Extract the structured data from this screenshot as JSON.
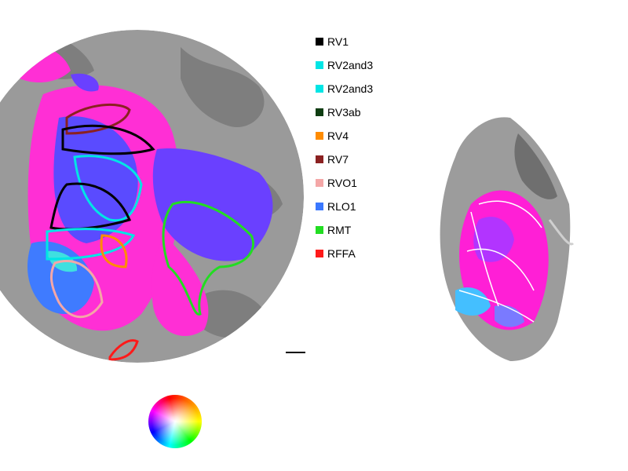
{
  "legend": {
    "items": [
      {
        "label": "RV1",
        "color": "#000000"
      },
      {
        "label": "RV2and3",
        "color": "#00e5e5"
      },
      {
        "label": "RV2and3",
        "color": "#00e5e5"
      },
      {
        "label": "RV3ab",
        "color": "#0f3d12"
      },
      {
        "label": "RV4",
        "color": "#ff8c00"
      },
      {
        "label": "RV7",
        "color": "#8b2121"
      },
      {
        "label": "RVO1",
        "color": "#f4a7a7"
      },
      {
        "label": "RLO1",
        "color": "#3a78ff"
      },
      {
        "label": "RMT",
        "color": "#22dd22"
      },
      {
        "label": "RFFA",
        "color": "#ff1a1a"
      }
    ]
  },
  "colors": {
    "cortex_light": "#9a9a9a",
    "cortex_dark": "#7d7d7d",
    "activation_magenta": "#ff2fd5",
    "activation_blue": "#4d4dff"
  },
  "icons": {
    "scale_bar": "scale-bar",
    "color_wheel": "phase-color-wheel"
  }
}
